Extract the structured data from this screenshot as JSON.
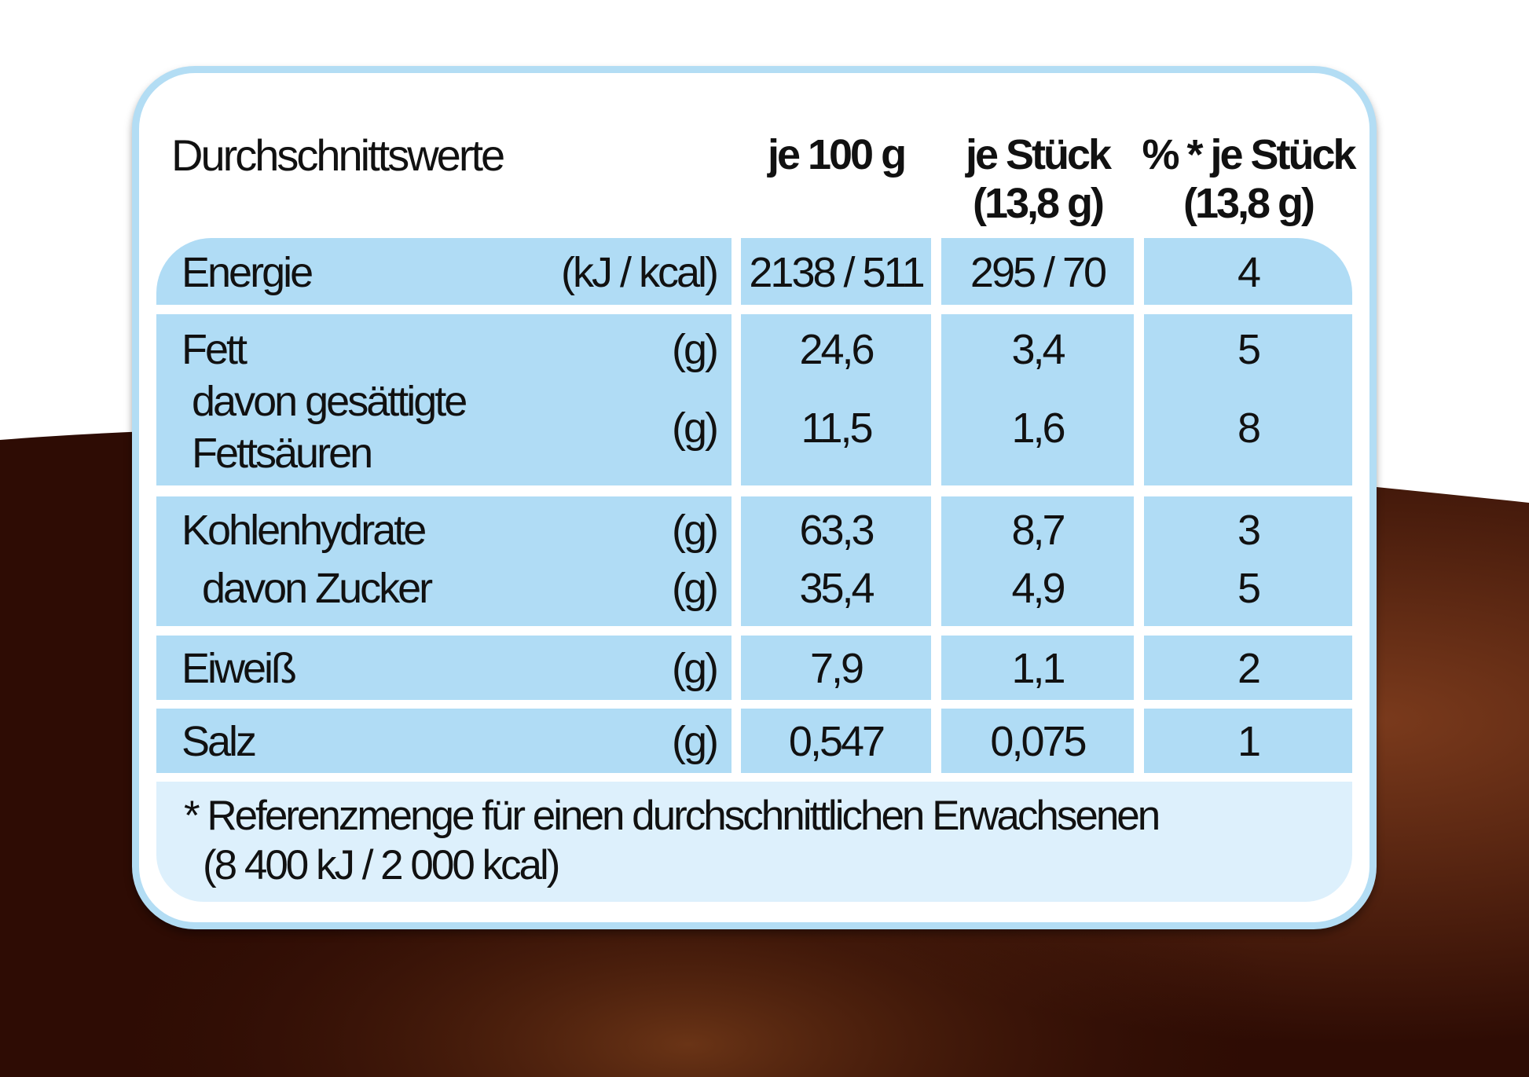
{
  "header": {
    "title": "Durchschnittswerte",
    "col_100g": "je 100 g",
    "col_piece": "je Stück",
    "col_piece_sub": "(13,8 g)",
    "col_pct": "% * je Stück",
    "col_pct_sub": "(13,8 g)"
  },
  "rows": [
    {
      "label": "Energie",
      "unit": "(kJ / kcal)",
      "per100": "2138 / 511",
      "perPiece": "295 / 70",
      "pct": "4"
    },
    {
      "label": "Fett",
      "unit": "(g)",
      "per100": "24,6",
      "perPiece": "3,4",
      "pct": "5"
    },
    {
      "label": "davon gesättigte",
      "label2": "Fettsäuren",
      "unit": "(g)",
      "per100": "11,5",
      "perPiece": "1,6",
      "pct": "8"
    },
    {
      "label": "Kohlenhydrate",
      "unit": "(g)",
      "per100": "63,3",
      "perPiece": "8,7",
      "pct": "3"
    },
    {
      "label": "davon Zucker",
      "unit": "(g)",
      "per100": "35,4",
      "perPiece": "4,9",
      "pct": "5"
    },
    {
      "label": "Eiweiß",
      "unit": "(g)",
      "per100": "7,9",
      "perPiece": "1,1",
      "pct": "2"
    },
    {
      "label": "Salz",
      "unit": "(g)",
      "per100": "0,547",
      "perPiece": "0,075",
      "pct": "1"
    }
  ],
  "footnote": {
    "line1": "* Referenzmenge für einen durchschnittlichen Erwachsenen",
    "line2": "(8 400 kJ / 2 000 kcal)"
  },
  "colors": {
    "border": "#b3ddf4",
    "cell": "#b0dcf5",
    "footnote_bg": "#ddf0fc",
    "chocolate": "#3a1408"
  }
}
